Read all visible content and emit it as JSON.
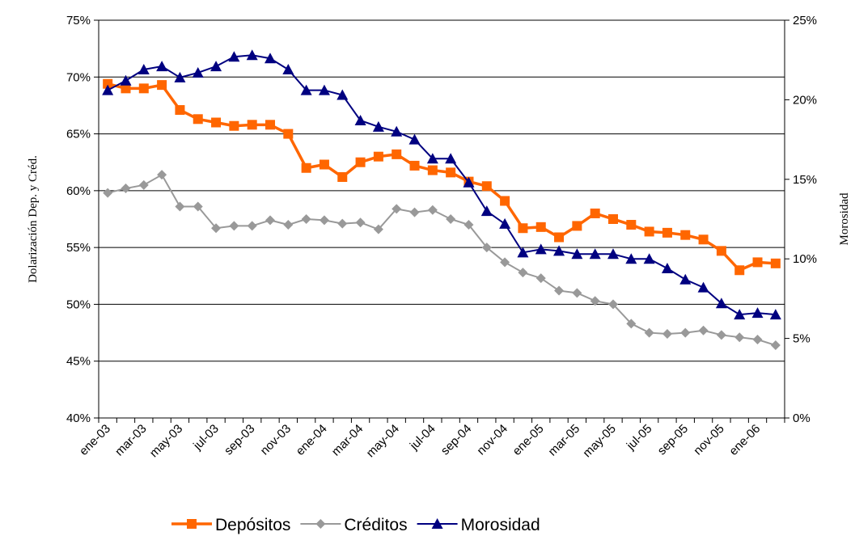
{
  "chart_data": {
    "type": "line",
    "ylabel": "Dolarización Dep. y Créd.",
    "y2label": "Morosidad",
    "categories": [
      "ene-03",
      null,
      "mar-03",
      null,
      "may-03",
      null,
      "jul-03",
      null,
      "sep-03",
      null,
      "nov-03",
      null,
      "ene-04",
      null,
      "mar-04",
      null,
      "may-04",
      null,
      "jul-04",
      null,
      "sep-04",
      null,
      "nov-04",
      null,
      "ene-05",
      null,
      "mar-05",
      null,
      "may-05",
      null,
      "jul-05",
      null,
      "sep-05",
      null,
      "nov-05",
      null,
      "ene-06",
      null
    ],
    "ylim": [
      40,
      75
    ],
    "yticks": [
      {
        "value": 40,
        "label": "40%"
      },
      {
        "value": 45,
        "label": "45%"
      },
      {
        "value": 50,
        "label": "50%"
      },
      {
        "value": 55,
        "label": "55%"
      },
      {
        "value": 60,
        "label": "60%"
      },
      {
        "value": 65,
        "label": "65%"
      },
      {
        "value": 70,
        "label": "70%"
      },
      {
        "value": 75,
        "label": "75%"
      }
    ],
    "y2lim": [
      0,
      25
    ],
    "y2ticks": [
      {
        "value": 0,
        "label": "0%"
      },
      {
        "value": 5,
        "label": "5%"
      },
      {
        "value": 10,
        "label": "10%"
      },
      {
        "value": 15,
        "label": "15%"
      },
      {
        "value": 20,
        "label": "20%"
      },
      {
        "value": 25,
        "label": "25%"
      }
    ],
    "grid": true,
    "legend": "bottom",
    "series": [
      {
        "name": "Depósitos",
        "color": "#ff6600",
        "marker": "square",
        "values": [
          69.4,
          69.0,
          69.0,
          69.3,
          67.1,
          66.3,
          66.0,
          65.7,
          65.8,
          65.8,
          65.0,
          62.0,
          62.3,
          61.2,
          62.5,
          63.0,
          63.2,
          62.2,
          61.8,
          61.6,
          60.8,
          60.4,
          59.1,
          56.7,
          56.8,
          55.9,
          56.9,
          58.0,
          57.5,
          57.0,
          56.4,
          56.3,
          56.1,
          55.7,
          54.7,
          53.0,
          53.7,
          53.6
        ]
      },
      {
        "name": "Créditos",
        "color": "#999999",
        "marker": "diamond",
        "values": [
          59.8,
          60.2,
          60.5,
          61.4,
          58.6,
          58.6,
          56.7,
          56.9,
          56.9,
          57.4,
          57.0,
          57.5,
          57.4,
          57.1,
          57.2,
          56.6,
          58.4,
          58.1,
          58.3,
          57.5,
          57.0,
          55.0,
          53.7,
          52.8,
          52.3,
          51.2,
          51.0,
          50.3,
          50.0,
          48.3,
          47.5,
          47.4,
          47.5,
          47.7,
          47.3,
          47.1,
          46.9,
          46.4
        ]
      },
      {
        "name": "Morosidad",
        "color": "#000080",
        "marker": "triangle",
        "axis": "y2",
        "values": [
          20.6,
          21.2,
          21.9,
          22.1,
          21.4,
          21.7,
          22.1,
          22.7,
          22.8,
          22.6,
          21.9,
          20.6,
          20.6,
          20.3,
          18.7,
          18.3,
          18.0,
          17.5,
          16.3,
          16.3,
          14.8,
          13.0,
          12.2,
          10.4,
          10.6,
          10.5,
          10.3,
          10.3,
          10.3,
          10.0,
          10.0,
          9.4,
          8.7,
          8.2,
          7.2,
          6.5,
          6.6,
          6.5
        ]
      }
    ]
  }
}
